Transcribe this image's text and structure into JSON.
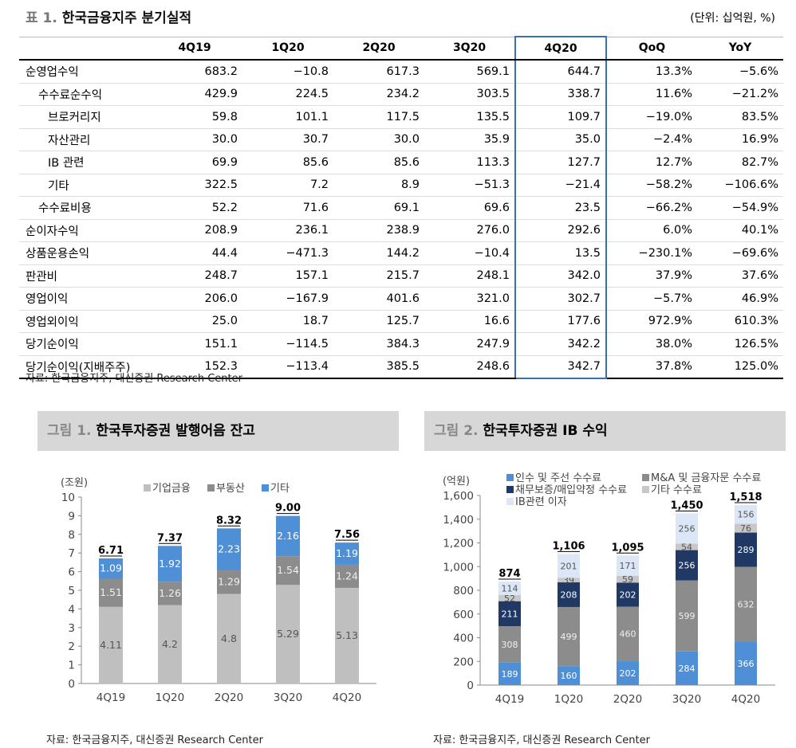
{
  "table": {
    "title_num": "표 1.",
    "title_text": "한국금융지주 분기실적",
    "unit": "(단위: 십억원, %)",
    "headers": [
      "",
      "4Q19",
      "1Q20",
      "2Q20",
      "3Q20",
      "4Q20",
      "QoQ",
      "YoY"
    ],
    "rows": [
      {
        "label": "순영업수익",
        "level": 0,
        "values": [
          "683.2",
          "-10.8",
          "617.3",
          "569.1",
          "644.7",
          "13.3%",
          "-5.6%"
        ]
      },
      {
        "label": "수수료순수익",
        "level": 1,
        "values": [
          "429.9",
          "224.5",
          "234.2",
          "303.5",
          "338.7",
          "11.6%",
          "-21.2%"
        ]
      },
      {
        "label": "브로커리지",
        "level": 2,
        "values": [
          "59.8",
          "101.1",
          "117.5",
          "135.5",
          "109.7",
          "-19.0%",
          "83.5%"
        ]
      },
      {
        "label": "자산관리",
        "level": 2,
        "values": [
          "30.0",
          "30.7",
          "30.0",
          "35.9",
          "35.0",
          "-2.4%",
          "16.9%"
        ]
      },
      {
        "label": "IB 관련",
        "level": 2,
        "values": [
          "69.9",
          "85.6",
          "85.6",
          "113.3",
          "127.7",
          "12.7%",
          "82.7%"
        ]
      },
      {
        "label": "기타",
        "level": 2,
        "values": [
          "322.5",
          "7.2",
          "8.9",
          "-51.3",
          "-21.4",
          "-58.2%",
          "-106.6%"
        ]
      },
      {
        "label": "수수료비용",
        "level": 1,
        "values": [
          "52.2",
          "71.6",
          "69.1",
          "69.6",
          "23.5",
          "-66.2%",
          "-54.9%"
        ]
      },
      {
        "label": "순이자수익",
        "level": 0,
        "values": [
          "208.9",
          "236.1",
          "238.9",
          "276.0",
          "292.6",
          "6.0%",
          "40.1%"
        ]
      },
      {
        "label": "상품운용손익",
        "level": 0,
        "values": [
          "44.4",
          "-471.3",
          "144.2",
          "-10.4",
          "13.5",
          "-230.1%",
          "-69.6%"
        ]
      },
      {
        "label": "판관비",
        "level": 0,
        "values": [
          "248.7",
          "157.1",
          "215.7",
          "248.1",
          "342.0",
          "37.9%",
          "37.6%"
        ]
      },
      {
        "label": "영업이익",
        "level": 0,
        "values": [
          "206.0",
          "-167.9",
          "401.6",
          "321.0",
          "302.7",
          "-5.7%",
          "46.9%"
        ]
      },
      {
        "label": "영업외이익",
        "level": 0,
        "values": [
          "25.0",
          "18.7",
          "125.7",
          "16.6",
          "177.6",
          "972.9%",
          "610.3%"
        ]
      },
      {
        "label": "당기순이익",
        "level": 0,
        "values": [
          "151.1",
          "-114.5",
          "384.3",
          "247.9",
          "342.2",
          "38.0%",
          "126.5%"
        ]
      },
      {
        "label": "당기순이익(지배주주)",
        "level": 0,
        "values": [
          "152.3",
          "-113.4",
          "385.5",
          "248.6",
          "342.7",
          "37.8%",
          "125.0%"
        ]
      }
    ],
    "source": "자료: 한국금융지주, 대신증권 Research Center"
  },
  "fig1": {
    "title_num": "그림 1.",
    "title_text": "한국투자증권 발행어음 잔고",
    "source": "자료: 한국금융지주, 대신증권 Research Center"
  },
  "fig2": {
    "title_num": "그림 2.",
    "title_text": "한국투자증권 IB 수익",
    "source": "자료: 한국금융지주, 대신증권 Research Center"
  },
  "chart_data": [
    {
      "type": "bar",
      "stacked": true,
      "unit_label": "(조원)",
      "categories": [
        "4Q19",
        "1Q20",
        "2Q20",
        "3Q20",
        "4Q20"
      ],
      "ylim": [
        0,
        10
      ],
      "yticks": [
        0,
        1,
        2,
        3,
        4,
        5,
        6,
        7,
        8,
        9,
        10
      ],
      "series": [
        {
          "name": "기업금융",
          "color": "#bfbfbf",
          "values": [
            4.11,
            4.2,
            4.8,
            5.29,
            5.13
          ]
        },
        {
          "name": "부동산",
          "color": "#8c8c8c",
          "values": [
            1.51,
            1.26,
            1.29,
            1.54,
            1.24
          ]
        },
        {
          "name": "기타",
          "color": "#4f8fd6",
          "values": [
            1.09,
            1.92,
            2.23,
            2.16,
            1.19
          ]
        }
      ],
      "totals": [
        "6.71",
        "7.37",
        "8.32",
        "9.00",
        "7.56"
      ],
      "legend": "top"
    },
    {
      "type": "bar",
      "stacked": true,
      "unit_label": "(억원)",
      "categories": [
        "4Q19",
        "1Q20",
        "2Q20",
        "3Q20",
        "4Q20"
      ],
      "ylim": [
        0,
        1600
      ],
      "yticks": [
        0,
        200,
        400,
        600,
        800,
        1000,
        1200,
        1400,
        1600
      ],
      "series": [
        {
          "name": "인수 및 주선 수수료",
          "color": "#4f8fd6",
          "values": [
            189,
            160,
            202,
            284,
            366
          ]
        },
        {
          "name": "M&A 및 금융자문 수수료",
          "color": "#8c8c8c",
          "values": [
            308,
            499,
            460,
            599,
            632
          ]
        },
        {
          "name": "채무보증/매입약정 수수료",
          "color": "#1f3864",
          "values": [
            211,
            208,
            202,
            256,
            289
          ]
        },
        {
          "name": "기타 수수료",
          "color": "#c8c8c8",
          "values": [
            52,
            39,
            59,
            54,
            76
          ]
        },
        {
          "name": "IB관련 이자",
          "color": "#dbe7f6",
          "values": [
            114,
            201,
            171,
            256,
            156
          ]
        }
      ],
      "totals": [
        "874",
        "1,106",
        "1,095",
        "1,450",
        "1,518"
      ],
      "legend": "top"
    }
  ]
}
